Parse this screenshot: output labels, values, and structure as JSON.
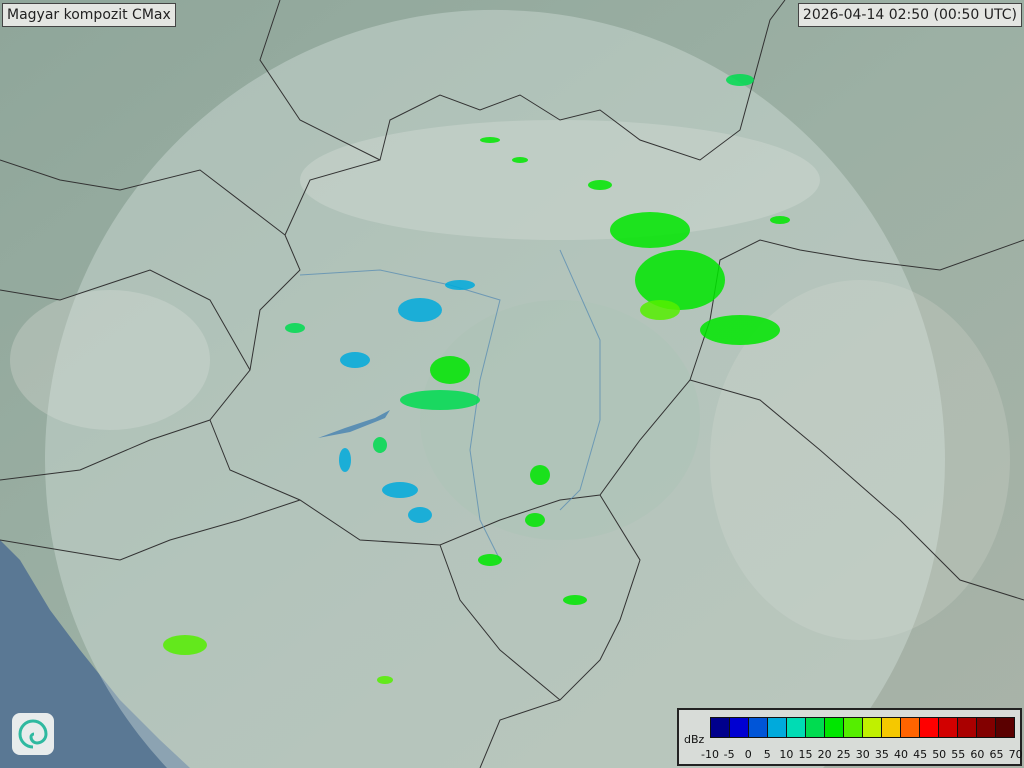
{
  "title": "Magyar kompozit  CMax",
  "timestamp": "2026-04-14 02:50 (00:50 UTC)",
  "legend": {
    "unit": "dBz",
    "ticks": [
      "-10",
      "-5",
      "0",
      "5",
      "10",
      "15",
      "20",
      "25",
      "30",
      "35",
      "40",
      "45",
      "50",
      "55",
      "60",
      "65",
      "70"
    ],
    "colors": [
      "#00008c",
      "#0000d2",
      "#0055d8",
      "#00aadc",
      "#00dcb4",
      "#00dc50",
      "#00e600",
      "#55ee00",
      "#c0f000",
      "#f5c800",
      "#ff6400",
      "#ff0000",
      "#d20000",
      "#aa0000",
      "#820000",
      "#5a0000"
    ]
  },
  "logo": {
    "icon": "swirl-logo-icon",
    "colors": [
      "#2fbf9a",
      "#2a8fd0"
    ]
  },
  "map": {
    "background": "#8aa596",
    "radar_coverage_color": "#d7e4de",
    "sea_color": "#5a7894"
  }
}
